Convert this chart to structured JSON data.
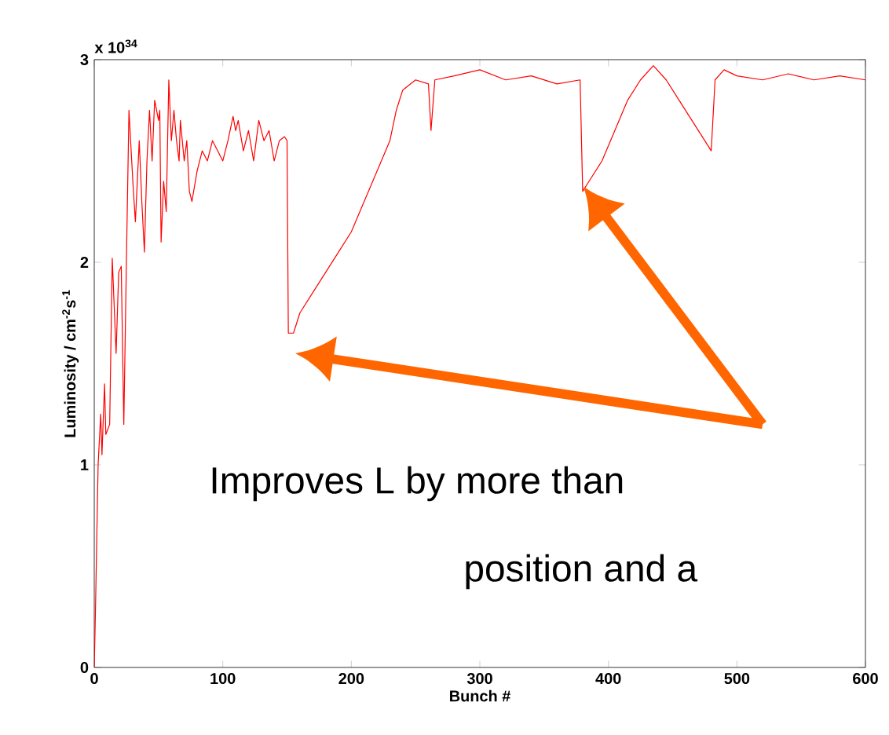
{
  "chart_data": {
    "type": "line",
    "xlabel": "Bunch #",
    "ylabel": "Luminosity / cm$^{-2}$s$^{-1}$",
    "annotations": [
      "x 10$^{34}$",
      "Improves L by more than",
      "position and a"
    ],
    "x": [
      0,
      1,
      3,
      5,
      6,
      8,
      9,
      12,
      14,
      17,
      19,
      21,
      23,
      25,
      27,
      30,
      32,
      35,
      37,
      39,
      41,
      43,
      45,
      47,
      50,
      51,
      52,
      54,
      56,
      58,
      60,
      62,
      64,
      66,
      67,
      70,
      72,
      74,
      76,
      80,
      84,
      88,
      92,
      96,
      100,
      104,
      108,
      110,
      112,
      116,
      120,
      124,
      128,
      132,
      136,
      140,
      144,
      148,
      150,
      151,
      155,
      160,
      170,
      180,
      190,
      200,
      210,
      220,
      230,
      235,
      240,
      250,
      260,
      262,
      265,
      280,
      300,
      320,
      340,
      360,
      378,
      380,
      385,
      395,
      405,
      415,
      425,
      435,
      445,
      455,
      465,
      475,
      480,
      483,
      490,
      500,
      520,
      540,
      560,
      580,
      600
    ],
    "series": [
      {
        "color": "#ff0000",
        "values": [
          0,
          0.3,
          1.0,
          1.25,
          1.05,
          1.4,
          1.15,
          1.2,
          2.02,
          1.55,
          1.95,
          1.98,
          1.2,
          2.0,
          2.75,
          2.4,
          2.2,
          2.6,
          2.3,
          2.05,
          2.5,
          2.75,
          2.5,
          2.8,
          2.7,
          2.75,
          2.1,
          2.4,
          2.25,
          2.9,
          2.6,
          2.75,
          2.6,
          2.5,
          2.7,
          2.5,
          2.6,
          2.35,
          2.3,
          2.45,
          2.55,
          2.5,
          2.6,
          2.55,
          2.5,
          2.6,
          2.72,
          2.65,
          2.7,
          2.55,
          2.65,
          2.5,
          2.7,
          2.6,
          2.65,
          2.5,
          2.6,
          2.62,
          2.6,
          1.65,
          1.65,
          1.75,
          1.85,
          1.95,
          2.05,
          2.15,
          2.3,
          2.45,
          2.6,
          2.75,
          2.85,
          2.9,
          2.88,
          2.65,
          2.9,
          2.92,
          2.95,
          2.9,
          2.92,
          2.88,
          2.9,
          2.35,
          2.4,
          2.5,
          2.65,
          2.8,
          2.9,
          2.97,
          2.9,
          2.8,
          2.7,
          2.6,
          2.55,
          2.9,
          2.95,
          2.92,
          2.9,
          2.93,
          2.9,
          2.92,
          2.9
        ]
      }
    ],
    "xlim": [
      0,
      600
    ],
    "ylim": [
      0,
      3
    ],
    "xticks": [
      0,
      100,
      200,
      300,
      400,
      500,
      600
    ],
    "yticks": [
      0,
      1,
      2,
      3
    ],
    "grid": false,
    "marker": "none",
    "line_style": "solid"
  }
}
